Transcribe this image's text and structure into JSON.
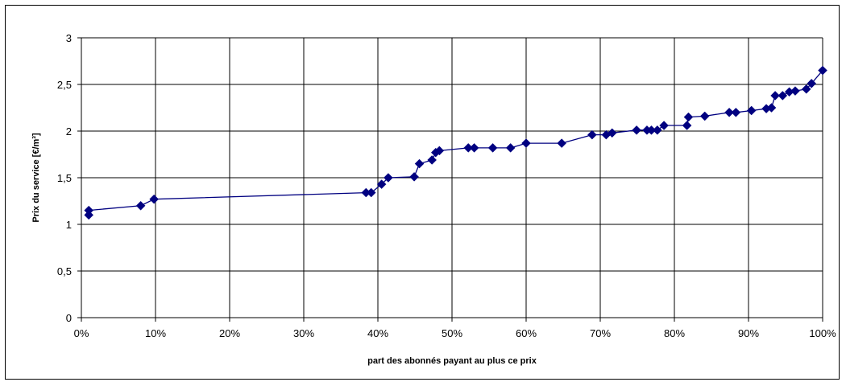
{
  "chart_data": {
    "type": "line",
    "xlabel": "part des abonnés payant au plus ce prix",
    "ylabel": "Prix du service [€/m³]",
    "xlim": [
      0,
      100
    ],
    "ylim": [
      0,
      3
    ],
    "x_tick_labels": [
      "0%",
      "10%",
      "20%",
      "30%",
      "40%",
      "50%",
      "60%",
      "70%",
      "80%",
      "90%",
      "100%"
    ],
    "y_tick_labels": [
      "0",
      "0,5",
      "1",
      "1,5",
      "2",
      "2,5",
      "3"
    ],
    "grid": true,
    "legend": false,
    "marker": "diamond",
    "color": "#000080",
    "series": [
      {
        "x": [
          1.0,
          1.0,
          8.0,
          9.8,
          38.4,
          39.1,
          40.5,
          41.4,
          44.9,
          45.6,
          47.3,
          47.8,
          48.3,
          52.2,
          53.0,
          55.5,
          57.9,
          60.0,
          64.8,
          68.9,
          70.8,
          71.6,
          74.9,
          76.3,
          76.9,
          77.7,
          78.6,
          81.7,
          81.9,
          84.1,
          87.4,
          88.3,
          90.4,
          92.4,
          93.1,
          93.6,
          94.6,
          95.5,
          96.3,
          97.8,
          98.5,
          100.0
        ],
        "y": [
          1.1,
          1.15,
          1.2,
          1.27,
          1.34,
          1.34,
          1.43,
          1.5,
          1.51,
          1.65,
          1.69,
          1.77,
          1.79,
          1.82,
          1.82,
          1.82,
          1.82,
          1.87,
          1.87,
          1.96,
          1.96,
          1.98,
          2.01,
          2.01,
          2.01,
          2.01,
          2.06,
          2.06,
          2.15,
          2.16,
          2.2,
          2.2,
          2.22,
          2.24,
          2.25,
          2.38,
          2.38,
          2.42,
          2.43,
          2.45,
          2.51,
          2.65
        ]
      }
    ]
  }
}
